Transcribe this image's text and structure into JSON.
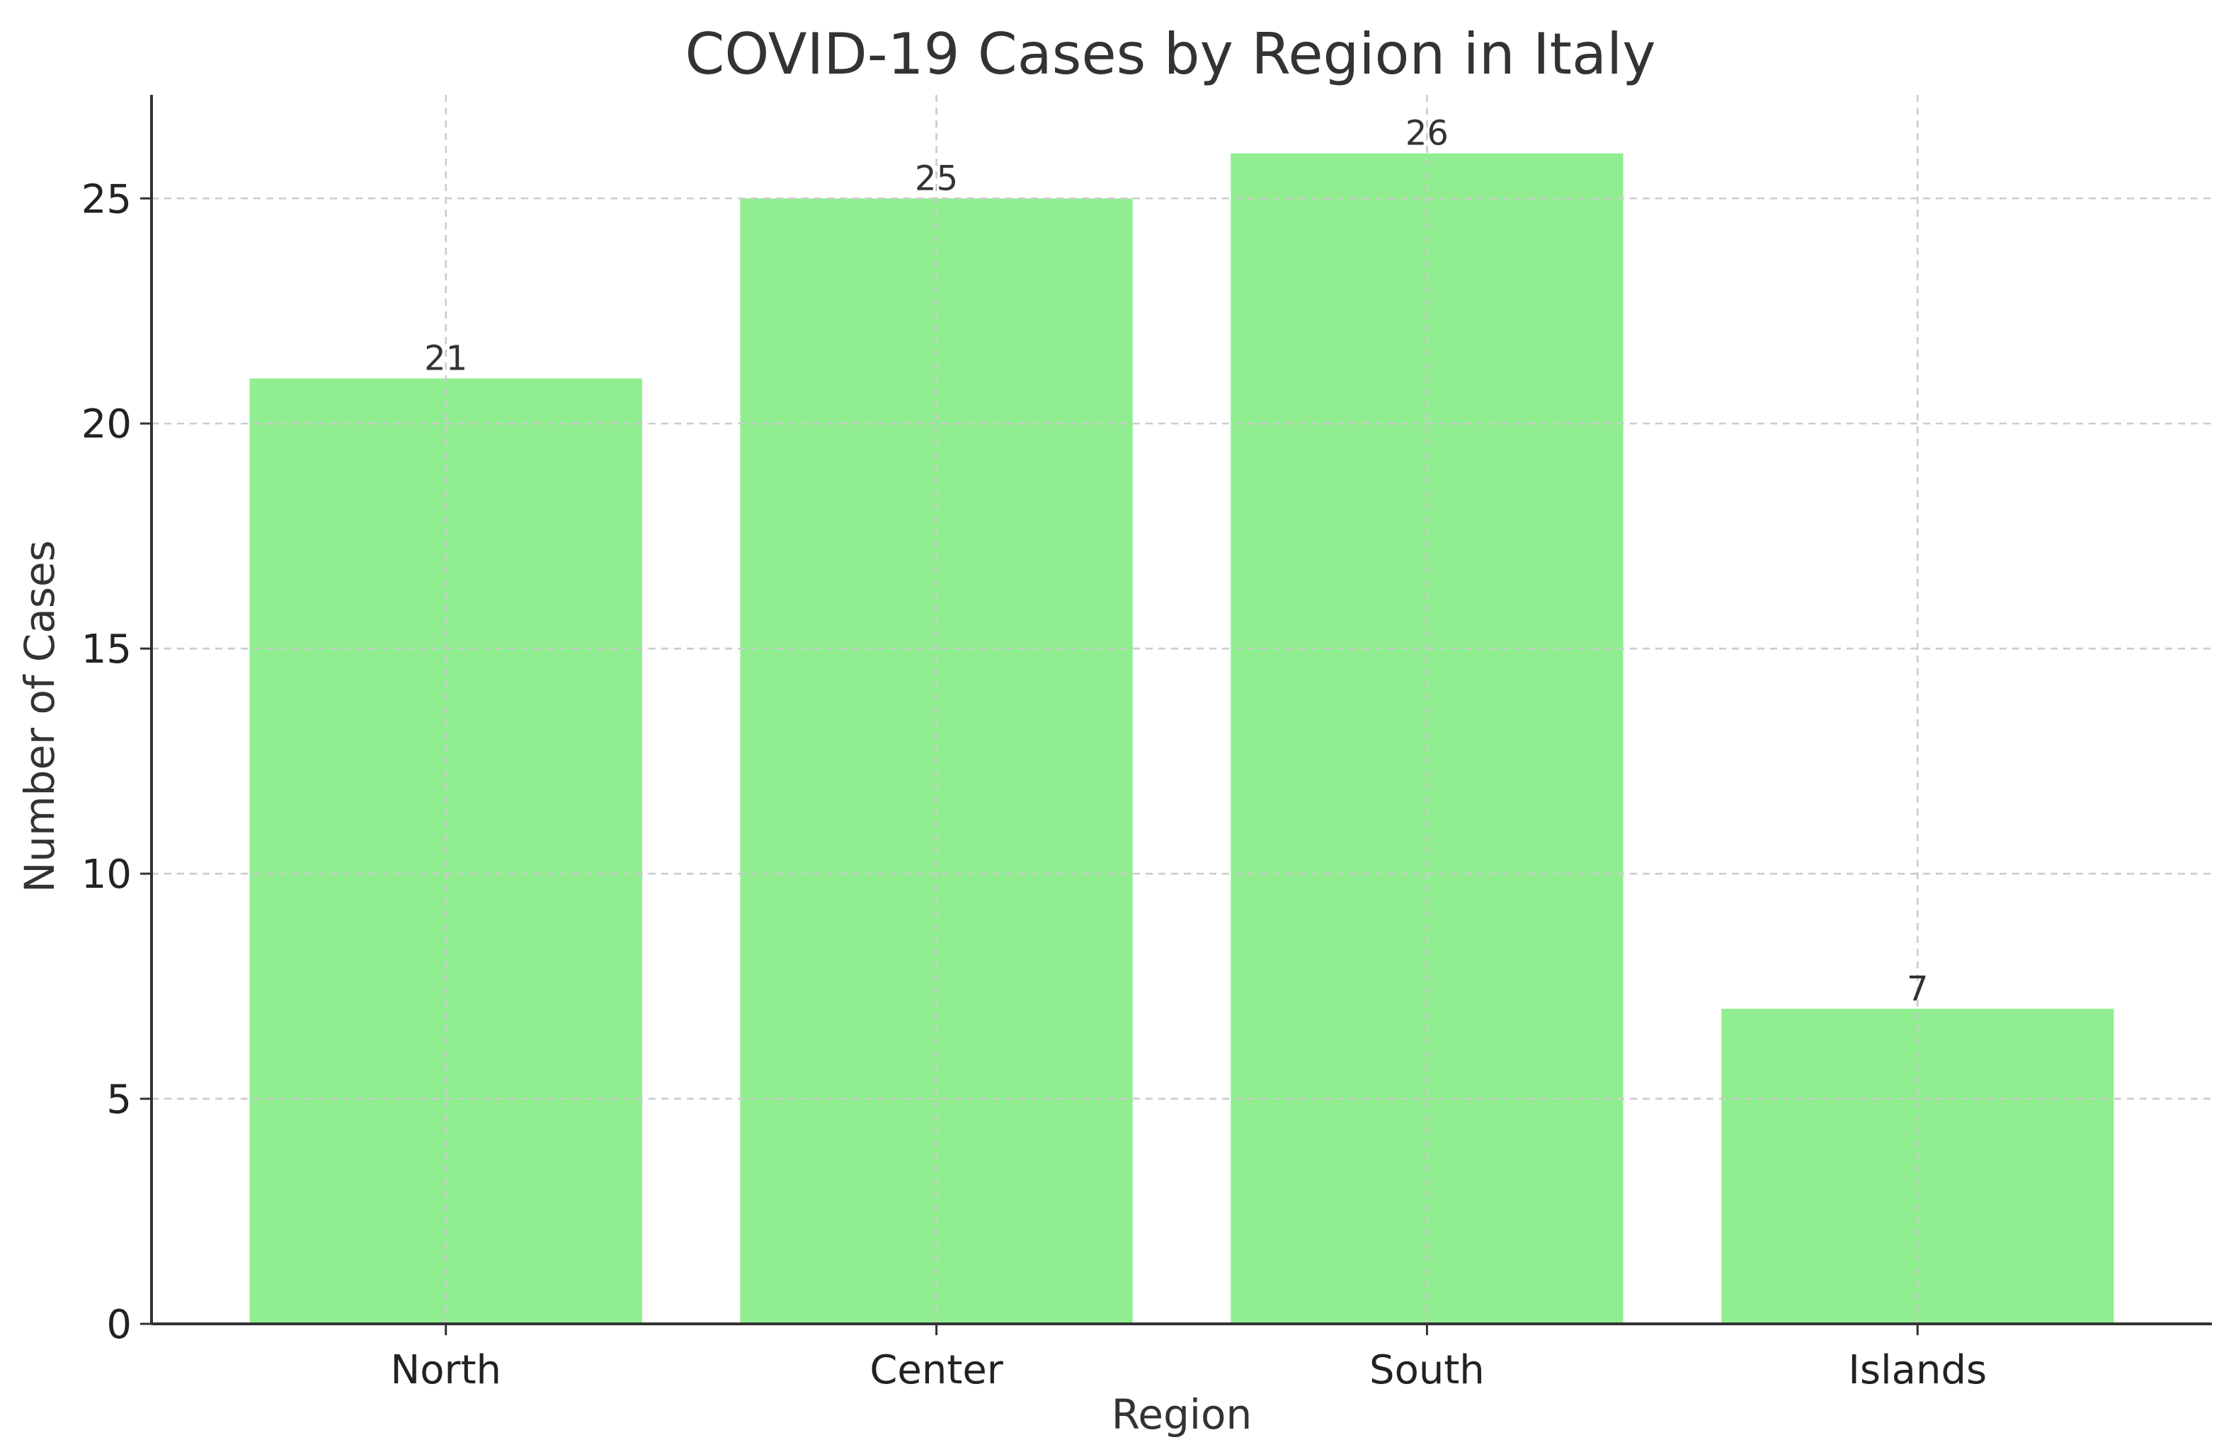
{
  "chart_data": {
    "type": "bar",
    "title": "COVID-19 Cases by Region in Italy",
    "xlabel": "Region",
    "ylabel": "Number of Cases",
    "categories": [
      "North",
      "Center",
      "South",
      "Islands"
    ],
    "values": [
      21,
      25,
      26,
      7
    ],
    "data_labels": [
      "21",
      "25",
      "26",
      "7"
    ],
    "ylim": [
      0,
      27.3
    ],
    "yticks": [
      0,
      5,
      10,
      15,
      20,
      25
    ],
    "ytick_labels": [
      "0",
      "5",
      "10",
      "15",
      "20",
      "25"
    ],
    "grid": true,
    "grid_style": "dashed",
    "bar_color": "#90EE90",
    "axis_color": "#333333",
    "grid_color": "#CCCCCC",
    "text_color": "#333333"
  }
}
